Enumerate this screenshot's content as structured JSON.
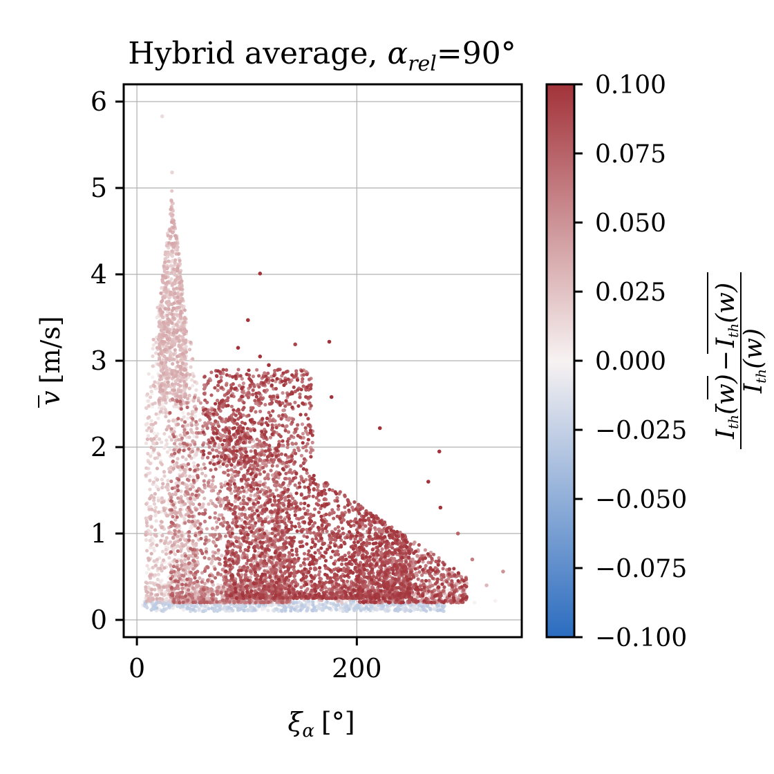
{
  "chart_data": {
    "type": "scatter",
    "title": "Hybrid average, α_rel=90°",
    "title_parts": {
      "lead": "Hybrid average, ",
      "symbol": "α",
      "subscript": "rel",
      "tail": "=90°"
    },
    "xlabel": "ξ_α [°]",
    "xlabel_parts": {
      "symbol": "ξ",
      "subscript": "α",
      "unit": "[°]"
    },
    "ylabel": "v̄ [m/s]",
    "ylabel_parts": {
      "symbol": "v",
      "unit": "[m/s]"
    },
    "xlim": [
      -12,
      350
    ],
    "ylim": [
      -0.2,
      6.2
    ],
    "xticks": [
      0,
      200
    ],
    "xtick_labels": [
      "0",
      "200"
    ],
    "yticks": [
      0,
      1,
      2,
      3,
      4,
      5,
      6
    ],
    "ytick_labels": [
      "0",
      "1",
      "2",
      "3",
      "4",
      "5",
      "6"
    ],
    "grid": true,
    "colorbar": {
      "colormap": "vlag",
      "vmin": -0.1,
      "vmax": 0.1,
      "ticks": [
        0.1,
        0.075,
        0.05,
        0.025,
        0.0,
        -0.025,
        -0.05,
        -0.075,
        -0.1
      ],
      "tick_labels": [
        "0.100",
        "0.075",
        "0.050",
        "0.025",
        "0.000",
        "−0.025",
        "−0.050",
        "−0.075",
        "−0.100"
      ],
      "label": "(I_th(w̄) − I_th(w)) / I_th(w)",
      "label_parts": {
        "num_a": "I",
        "num_a_sub": "th",
        "num_a_arg": "(w)",
        "num_b": "I",
        "num_b_sub": "th",
        "num_b_arg": "(w)",
        "den": "I",
        "den_sub": "th",
        "den_arg": "(w)"
      },
      "colors": {
        "low": "#2b6cbf",
        "mid": "#f7f2f2",
        "high": "#a2333a"
      }
    },
    "outliers": [
      {
        "x": 23,
        "y": 5.83,
        "c": 0.012
      },
      {
        "x": 32,
        "y": 5.18,
        "c": 0.015
      },
      {
        "x": 112,
        "y": 4.01,
        "c": 0.1
      },
      {
        "x": 101,
        "y": 3.47,
        "c": 0.1
      },
      {
        "x": 144,
        "y": 3.19,
        "c": 0.09
      },
      {
        "x": 175,
        "y": 3.22,
        "c": 0.1
      },
      {
        "x": 92,
        "y": 3.15,
        "c": 0.1
      },
      {
        "x": 112,
        "y": 3.05,
        "c": 0.1
      },
      {
        "x": 120,
        "y": 2.95,
        "c": 0.1
      },
      {
        "x": 221,
        "y": 2.22,
        "c": 0.1
      },
      {
        "x": 275,
        "y": 1.95,
        "c": 0.1
      },
      {
        "x": 292,
        "y": 1.0,
        "c": 0.075
      },
      {
        "x": 305,
        "y": 0.7,
        "c": 0.06
      },
      {
        "x": 333,
        "y": 0.56,
        "c": 0.05
      },
      {
        "x": 318,
        "y": 0.4,
        "c": 0.03
      },
      {
        "x": 326,
        "y": 0.22,
        "c": 0.0
      },
      {
        "x": 307,
        "y": 0.2,
        "c": 0.0
      },
      {
        "x": 177,
        "y": 2.58,
        "c": 0.1
      },
      {
        "x": 265,
        "y": 1.6,
        "c": 0.1
      },
      {
        "x": 276,
        "y": 1.3,
        "c": 0.1
      }
    ],
    "clusters": [
      {
        "n": 900,
        "xmin": 8,
        "xmax": 55,
        "ymin": 0.2,
        "ymax": 4.8,
        "yshape": "spike",
        "cmin": 0.0,
        "cmax": 0.035
      },
      {
        "n": 700,
        "xmin": 20,
        "xmax": 45,
        "ymin": 2.5,
        "ymax": 5.0,
        "yshape": "uniform",
        "cmin": 0.01,
        "cmax": 0.04
      },
      {
        "n": 1500,
        "xmin": 30,
        "xmax": 140,
        "ymin": 0.2,
        "ymax": 2.6,
        "yshape": "low",
        "cmin": 0.02,
        "cmax": 0.08
      },
      {
        "n": 2200,
        "xmin": 80,
        "xmax": 250,
        "ymin": 0.25,
        "ymax": 2.3,
        "yshape": "low",
        "cmin": 0.06,
        "cmax": 0.1
      },
      {
        "n": 650,
        "xmin": 200,
        "xmax": 300,
        "ymin": 0.2,
        "ymax": 1.5,
        "yshape": "low",
        "cmin": 0.04,
        "cmax": 0.1
      },
      {
        "n": 650,
        "xmin": 60,
        "xmax": 160,
        "ymin": 1.8,
        "ymax": 2.9,
        "yshape": "uniform",
        "cmin": 0.05,
        "cmax": 0.1
      },
      {
        "n": 700,
        "xmin": 5,
        "xmax": 280,
        "ymin": 0.1,
        "ymax": 0.22,
        "yshape": "uniform",
        "cmin": -0.03,
        "cmax": 0.0
      },
      {
        "n": 500,
        "xmin": 10,
        "xmax": 300,
        "ymin": 0.2,
        "ymax": 0.45,
        "yshape": "uniform",
        "cmin": 0.0,
        "cmax": 0.04
      }
    ]
  }
}
